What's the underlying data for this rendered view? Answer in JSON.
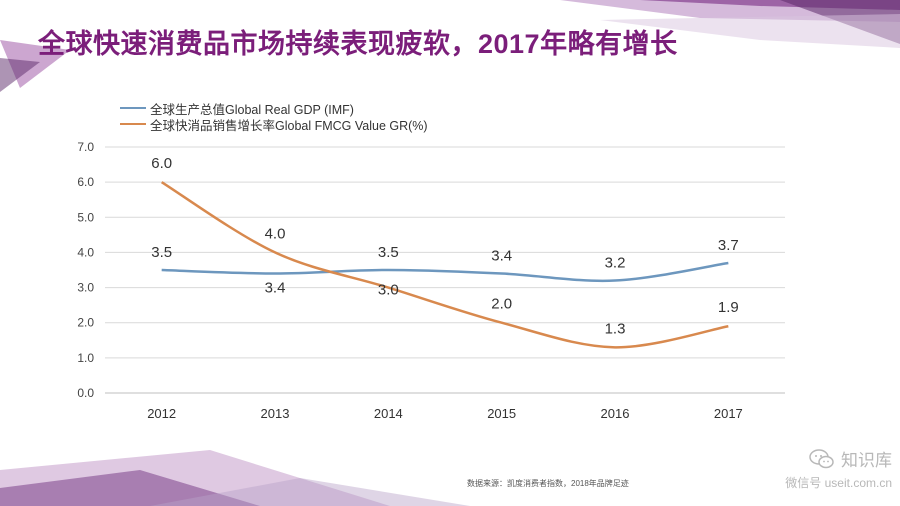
{
  "title": "全球快速消费品市场持续表现疲软，2017年略有增长",
  "source_note": "数据来源：凯度消费者指数，2018年品牌足迹",
  "watermark": {
    "name": "知识库",
    "account": "微信号 useit.com.cn",
    "icon": "wechat-icon"
  },
  "colors": {
    "title": "#7b1e7a",
    "gdp": "#6d97be",
    "fmcg": "#d8894e",
    "grid": "#d9d9d9"
  },
  "chart_data": {
    "type": "line",
    "title": "",
    "xlabel": "",
    "ylabel": "",
    "categories": [
      "2012",
      "2013",
      "2014",
      "2015",
      "2016",
      "2017"
    ],
    "ylim": [
      0,
      7
    ],
    "yticks": [
      "0.0",
      "1.0",
      "2.0",
      "3.0",
      "4.0",
      "5.0",
      "6.0",
      "7.0"
    ],
    "grid": true,
    "legend_position": "top-left",
    "series": [
      {
        "name": "全球生产总值Global Real GDP (IMF)",
        "values": [
          3.5,
          3.4,
          3.5,
          3.4,
          3.2,
          3.7
        ],
        "labels": [
          "3.5",
          "3.4",
          "3.5",
          "3.4",
          "3.2",
          "3.7"
        ]
      },
      {
        "name": "全球快消品销售增长率Global FMCG Value GR(%)",
        "values": [
          6.0,
          4.0,
          3.0,
          2.0,
          1.3,
          1.9
        ],
        "labels": [
          "6.0",
          "4.0",
          "3.0",
          "2.0",
          "1.3",
          "1.9"
        ]
      }
    ]
  }
}
